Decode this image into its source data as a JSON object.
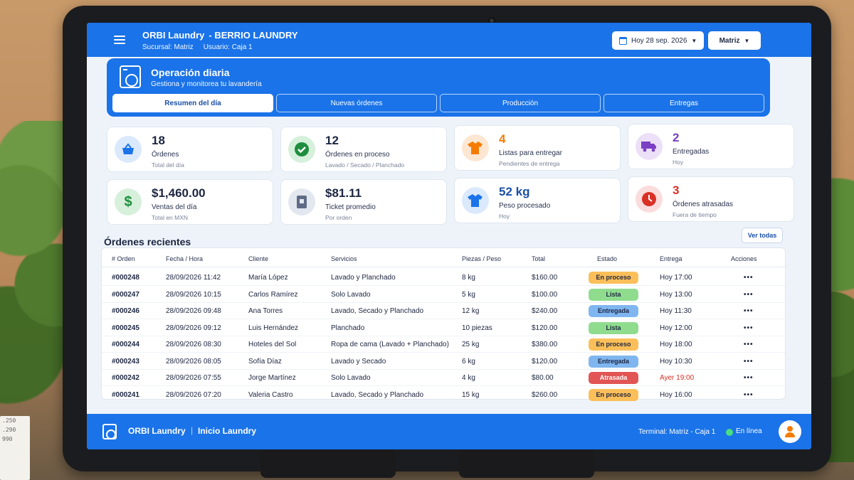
{
  "header": {
    "app_name": "ORBI Laundry",
    "business": "-  BERRIO LAUNDRY",
    "branch_line": "Sucursal: Matriz",
    "user_line": "Usuario: Caja 1",
    "date_label": "Hoy 28 sep. 2026",
    "branch_select": "Matriz"
  },
  "operation": {
    "title": "Operación diaria",
    "subtitle": "Gestiona y monitorea tu lavandería",
    "tabs": [
      "Resumen del día",
      "Nuevas órdenes",
      "Producción",
      "Entregas"
    ],
    "active_tab": 0
  },
  "stats": [
    {
      "value": "18",
      "label": "Órdenes",
      "hint": "Total del día",
      "icon": "basket-icon",
      "color": "#1a73e8"
    },
    {
      "value": "12",
      "label": "Órdenes en proceso",
      "hint": "Lavado / Secado / Planchado",
      "icon": "check-icon",
      "color": "#1e8e3e"
    },
    {
      "value": "4",
      "label": "Listas para entregar",
      "hint": "Pendientes de entrega",
      "icon": "shirt-icon",
      "color": "#f57c00"
    },
    {
      "value": "2",
      "label": "Entregadas",
      "hint": "Hoy",
      "icon": "truck-icon",
      "color": "#7b3fc4"
    },
    {
      "value": "$1,460.00",
      "label": "Ventas del día",
      "hint": "Total en MXN",
      "icon": "dollar-icon",
      "color": "#1e8e3e"
    },
    {
      "value": "$81.11",
      "label": "Ticket promedio",
      "hint": "Por orden",
      "icon": "receipt-icon",
      "color": "#5f6b85"
    },
    {
      "value": "52 kg",
      "label": "Peso procesado",
      "hint": "Hoy",
      "icon": "tshirt-icon",
      "color": "#1a73e8"
    },
    {
      "value": "3",
      "label": "Órdenes atrasadas",
      "hint": "Fuera de tiempo",
      "icon": "clock-icon",
      "color": "#d93025"
    }
  ],
  "recent": {
    "title": "Órdenes recientes",
    "view_all": "Ver todas",
    "columns": [
      "# Orden",
      "Fecha / Hora",
      "Cliente",
      "Servicios",
      "Piezas / Peso",
      "Total",
      "Estado",
      "Entrega",
      "Acciones"
    ],
    "rows": [
      {
        "order": "#000248",
        "date": "28/09/2026 11:42",
        "client": "María López",
        "service": "Lavado y Planchado",
        "qty": "8 kg",
        "total": "$160.00",
        "status": "En proceso",
        "delivery": "Hoy 17:00",
        "late": false
      },
      {
        "order": "#000247",
        "date": "28/09/2026 10:15",
        "client": "Carlos Ramírez",
        "service": "Solo Lavado",
        "qty": "5 kg",
        "total": "$100.00",
        "status": "Lista",
        "delivery": "Hoy 13:00",
        "late": false
      },
      {
        "order": "#000246",
        "date": "28/09/2026 09:48",
        "client": "Ana Torres",
        "service": "Lavado, Secado y Planchado",
        "qty": "12 kg",
        "total": "$240.00",
        "status": "Entregada",
        "delivery": "Hoy 11:30",
        "late": false
      },
      {
        "order": "#000245",
        "date": "28/09/2026 09:12",
        "client": "Luis Hernández",
        "service": "Planchado",
        "qty": "10 piezas",
        "total": "$120.00",
        "status": "Lista",
        "delivery": "Hoy 12:00",
        "late": false
      },
      {
        "order": "#000244",
        "date": "28/09/2026 08:30",
        "client": "Hoteles del Sol",
        "service": "Ropa de cama (Lavado + Planchado)",
        "qty": "25 kg",
        "total": "$380.00",
        "status": "En proceso",
        "delivery": "Hoy 18:00",
        "late": false
      },
      {
        "order": "#000243",
        "date": "28/09/2026 08:05",
        "client": "Sofía Díaz",
        "service": "Lavado y Secado",
        "qty": "6 kg",
        "total": "$120.00",
        "status": "Entregada",
        "delivery": "Hoy 10:30",
        "late": false
      },
      {
        "order": "#000242",
        "date": "28/09/2026 07:55",
        "client": "Jorge Martínez",
        "service": "Solo Lavado",
        "qty": "4 kg",
        "total": "$80.00",
        "status": "Atrasada",
        "delivery": "Ayer 19:00",
        "late": true
      },
      {
        "order": "#000241",
        "date": "28/09/2026 07:20",
        "client": "Valeria Castro",
        "service": "Lavado, Secado y Planchado",
        "qty": "15 kg",
        "total": "$260.00",
        "status": "En proceso",
        "delivery": "Hoy 16:00",
        "late": false
      }
    ],
    "actions_glyph": "•••"
  },
  "status_colors": {
    "En proceso": "#fbbf5a",
    "Lista": "#8fdc8f",
    "Entregada": "#7fb6f0",
    "Atrasada": "#e25555"
  },
  "footer": {
    "brand": "ORBI Laundry",
    "separator": "|",
    "section": "Inicio Laundry",
    "terminal": "Terminal: Matriz - Caja 1",
    "status": "En línea"
  },
  "background": {
    "receipt_lines": [
      ".250",
      ".290",
      "990"
    ]
  }
}
